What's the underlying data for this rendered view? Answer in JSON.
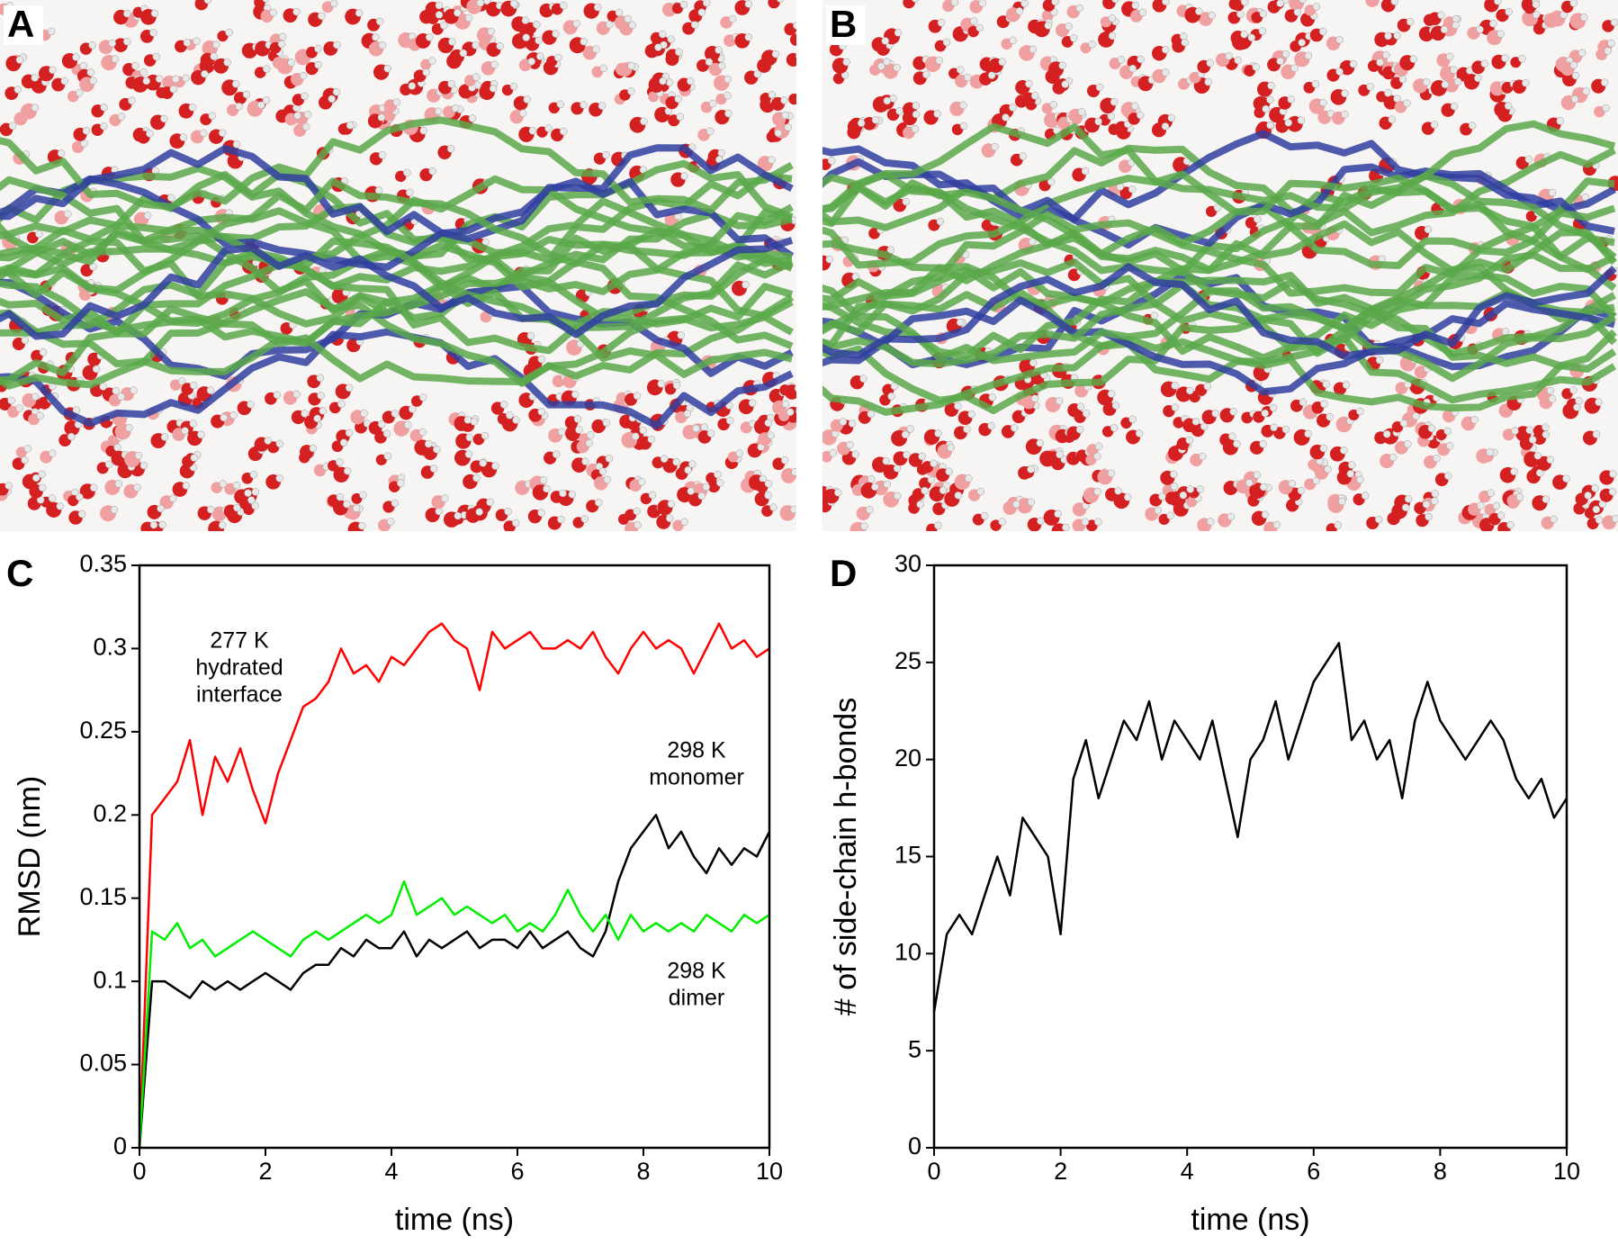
{
  "images": [
    {
      "panel_label": "A"
    },
    {
      "panel_label": "B"
    }
  ],
  "chart_data": [
    {
      "type": "line",
      "panel_label": "C",
      "x_label": "time (ns)",
      "y_label": "RMSD (nm)",
      "xlim": [
        0,
        10
      ],
      "xticks": [
        0,
        2,
        4,
        6,
        8,
        10
      ],
      "ylim": [
        0,
        0.35
      ],
      "yticks": [
        0,
        0.05,
        0.1,
        0.15,
        0.2,
        0.25,
        0.3,
        0.35
      ],
      "grid": false,
      "x": [
        0,
        0.2,
        0.4,
        0.6,
        0.8,
        1,
        1.2,
        1.4,
        1.6,
        1.8,
        2,
        2.2,
        2.4,
        2.6,
        2.8,
        3,
        3.2,
        3.4,
        3.6,
        3.8,
        4,
        4.2,
        4.4,
        4.6,
        4.8,
        5,
        5.2,
        5.4,
        5.6,
        5.8,
        6,
        6.2,
        6.4,
        6.6,
        6.8,
        7,
        7.2,
        7.4,
        7.6,
        7.8,
        8,
        8.2,
        8.4,
        8.6,
        8.8,
        9,
        9.2,
        9.4,
        9.6,
        9.8,
        10
      ],
      "series": [
        {
          "name_lines": [
            "277 K",
            "hydrated",
            "interface"
          ],
          "color": "#ff0000",
          "values": [
            0,
            0.2,
            0.21,
            0.22,
            0.245,
            0.2,
            0.235,
            0.22,
            0.24,
            0.215,
            0.195,
            0.225,
            0.245,
            0.265,
            0.27,
            0.28,
            0.3,
            0.285,
            0.29,
            0.28,
            0.295,
            0.29,
            0.3,
            0.31,
            0.315,
            0.305,
            0.3,
            0.275,
            0.31,
            0.3,
            0.305,
            0.31,
            0.3,
            0.3,
            0.305,
            0.3,
            0.31,
            0.295,
            0.285,
            0.3,
            0.31,
            0.3,
            0.305,
            0.3,
            0.285,
            0.3,
            0.315,
            0.3,
            0.305,
            0.295,
            0.3
          ]
        },
        {
          "name_lines": [
            "298 K",
            "monomer"
          ],
          "color": "#000000",
          "values": [
            0,
            0.1,
            0.1,
            0.095,
            0.09,
            0.1,
            0.095,
            0.1,
            0.095,
            0.1,
            0.105,
            0.1,
            0.095,
            0.105,
            0.11,
            0.11,
            0.12,
            0.115,
            0.125,
            0.12,
            0.12,
            0.13,
            0.115,
            0.125,
            0.12,
            0.125,
            0.13,
            0.12,
            0.125,
            0.125,
            0.12,
            0.13,
            0.12,
            0.125,
            0.13,
            0.12,
            0.115,
            0.13,
            0.16,
            0.18,
            0.19,
            0.2,
            0.18,
            0.19,
            0.175,
            0.165,
            0.18,
            0.17,
            0.18,
            0.175,
            0.19
          ]
        },
        {
          "name_lines": [
            "298 K",
            "dimer"
          ],
          "color": "#00ee00",
          "values": [
            0,
            0.13,
            0.125,
            0.135,
            0.12,
            0.125,
            0.115,
            0.12,
            0.125,
            0.13,
            0.125,
            0.12,
            0.115,
            0.125,
            0.13,
            0.125,
            0.13,
            0.135,
            0.14,
            0.135,
            0.14,
            0.16,
            0.14,
            0.145,
            0.15,
            0.14,
            0.145,
            0.14,
            0.135,
            0.14,
            0.13,
            0.135,
            0.13,
            0.14,
            0.155,
            0.14,
            0.13,
            0.14,
            0.125,
            0.14,
            0.13,
            0.135,
            0.13,
            0.135,
            0.13,
            0.14,
            0.135,
            0.13,
            0.14,
            0.135,
            0.14
          ]
        }
      ]
    },
    {
      "type": "line",
      "panel_label": "D",
      "x_label": "time (ns)",
      "y_label": "# of side-chain h-bonds",
      "xlim": [
        0,
        10
      ],
      "xticks": [
        0,
        2,
        4,
        6,
        8,
        10
      ],
      "ylim": [
        0,
        30
      ],
      "yticks": [
        0,
        5,
        10,
        15,
        20,
        25,
        30
      ],
      "grid": false,
      "x": [
        0,
        0.2,
        0.4,
        0.6,
        0.8,
        1,
        1.2,
        1.4,
        1.6,
        1.8,
        2,
        2.2,
        2.4,
        2.6,
        2.8,
        3,
        3.2,
        3.4,
        3.6,
        3.8,
        4,
        4.2,
        4.4,
        4.6,
        4.8,
        5,
        5.2,
        5.4,
        5.6,
        5.8,
        6,
        6.2,
        6.4,
        6.6,
        6.8,
        7,
        7.2,
        7.4,
        7.6,
        7.8,
        8,
        8.2,
        8.4,
        8.6,
        8.8,
        9,
        9.2,
        9.4,
        9.6,
        9.8,
        10
      ],
      "series": [
        {
          "color": "#000000",
          "values": [
            7,
            11,
            12,
            11,
            13,
            15,
            13,
            17,
            16,
            15,
            11,
            19,
            21,
            18,
            20,
            22,
            21,
            23,
            20,
            22,
            21,
            20,
            22,
            19,
            16,
            20,
            21,
            23,
            20,
            22,
            24,
            25,
            26,
            21,
            22,
            20,
            21,
            18,
            22,
            24,
            22,
            21,
            20,
            21,
            22,
            21,
            19,
            18,
            19,
            17,
            18
          ]
        }
      ]
    }
  ]
}
